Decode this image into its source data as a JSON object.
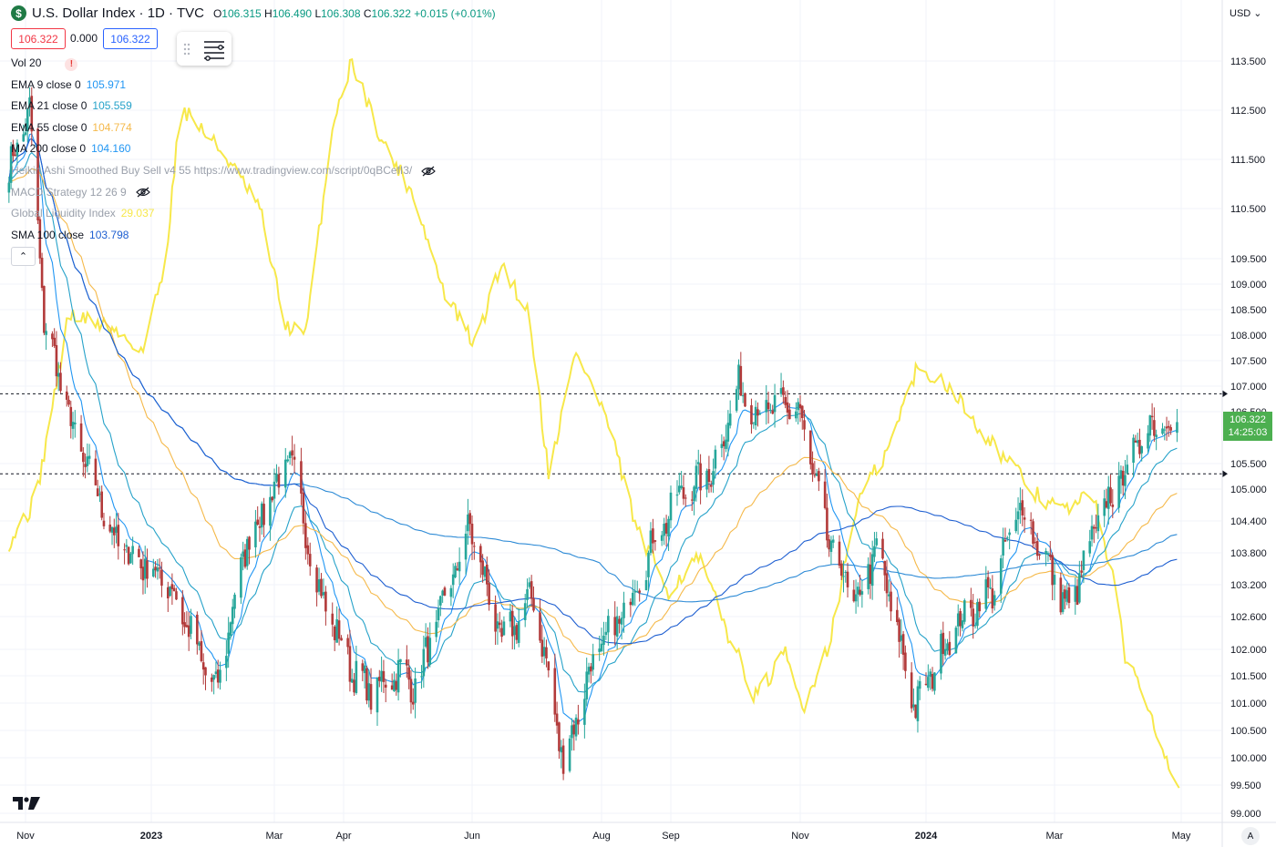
{
  "header": {
    "title": "U.S. Dollar Index · 1D · TVC",
    "ohlc": [
      {
        "k": "O",
        "v": "106.315"
      },
      {
        "k": "H",
        "v": "106.490"
      },
      {
        "k": "L",
        "v": "106.308"
      },
      {
        "k": "C",
        "v": "106.322"
      },
      {
        "k": "",
        "v": "+0.015 (+0.01%)"
      }
    ],
    "bid": "106.322",
    "spread": "0.000",
    "ask": "106.322"
  },
  "indicators": [
    {
      "label": "Vol 20",
      "value": "",
      "color": "#131722",
      "faded": false
    },
    {
      "label": "EMA 9 close 0",
      "value": "105.971",
      "color": "#2196f3",
      "faded": false
    },
    {
      "label": "EMA 21 close 0",
      "value": "105.559",
      "color": "#26a2c9",
      "faded": false
    },
    {
      "label": "EMA 55 close 0",
      "value": "104.774",
      "color": "#f5b94a",
      "faded": false
    },
    {
      "label": "MA 200 close 0",
      "value": "104.160",
      "color": "#2196f3",
      "faded": false
    },
    {
      "label": "Heikin Ashi Smoothed Buy Sell v4 55 https://www.tradingview.com/script/0qBCefI3/",
      "value": "",
      "color": "#9aa0ab",
      "faded": true
    },
    {
      "label": "MACD Strategy 12 26 9",
      "value": "",
      "color": "#9aa0ab",
      "faded": true
    },
    {
      "label": "Global Liquidity Index",
      "value": "29.037",
      "color": "#f7e84a",
      "faded": true
    },
    {
      "label": "SMA 100 close",
      "value": "103.798",
      "color": "#1e5fd1",
      "faded": false
    }
  ],
  "price_axis": {
    "currency": "USD",
    "last_price": "106.322",
    "countdown": "14:25:03"
  },
  "colors": {
    "up": "#26a69a",
    "down": "#b23a3a",
    "ema9": "#2196f3",
    "ema21": "#26a2c9",
    "ema55": "#f5b94a",
    "ma200": "#2e8bd6",
    "sma100": "#1e5fd1",
    "liquidity": "#f7e84a",
    "last": "#4caf50"
  },
  "chart_data": {
    "type": "candlestick",
    "symbol": "U.S. Dollar Index",
    "interval": "1D",
    "y_ticks": [
      "99.000",
      "99.500",
      "100.000",
      "100.500",
      "101.000",
      "101.500",
      "102.000",
      "102.600",
      "103.200",
      "103.800",
      "104.400",
      "105.000",
      "105.500",
      "106.500",
      "107.000",
      "107.500",
      "108.000",
      "108.500",
      "109.000",
      "109.500",
      "110.500",
      "111.500",
      "112.500",
      "113.500"
    ],
    "x_ticks": [
      "Nov",
      "2023",
      "Mar",
      "Apr",
      "Jun",
      "Aug",
      "Sep",
      "Nov",
      "2024",
      "Mar",
      "May"
    ],
    "dashed_levels": [
      106.85,
      105.3
    ],
    "price_anchors": [
      [
        "2022-10-24",
        111.3
      ],
      [
        "2022-11-03",
        112.5
      ],
      [
        "2022-11-10",
        108.3
      ],
      [
        "2022-11-25",
        106.0
      ],
      [
        "2022-12-15",
        104.0
      ],
      [
        "2023-01-10",
        103.2
      ],
      [
        "2023-01-27",
        101.6
      ],
      [
        "2023-02-01",
        101.2
      ],
      [
        "2023-02-15",
        103.9
      ],
      [
        "2023-03-08",
        105.6
      ],
      [
        "2023-03-21",
        103.1
      ],
      [
        "2023-04-05",
        101.6
      ],
      [
        "2023-04-14",
        101.2
      ],
      [
        "2023-04-27",
        101.6
      ],
      [
        "2023-05-05",
        101.3
      ],
      [
        "2023-05-31",
        104.3
      ],
      [
        "2023-06-15",
        102.1
      ],
      [
        "2023-06-30",
        103.0
      ],
      [
        "2023-07-14",
        99.9
      ],
      [
        "2023-07-27",
        101.7
      ],
      [
        "2023-08-10",
        102.6
      ],
      [
        "2023-08-25",
        104.1
      ],
      [
        "2023-09-07",
        105.0
      ],
      [
        "2023-09-20",
        105.3
      ],
      [
        "2023-10-03",
        107.0
      ],
      [
        "2023-10-12",
        106.5
      ],
      [
        "2023-10-31",
        106.6
      ],
      [
        "2023-11-14",
        104.1
      ],
      [
        "2023-11-28",
        102.8
      ],
      [
        "2023-12-08",
        103.9
      ],
      [
        "2023-12-27",
        100.9
      ],
      [
        "2024-01-12",
        102.3
      ],
      [
        "2024-02-01",
        103.1
      ],
      [
        "2024-02-14",
        104.7
      ],
      [
        "2024-03-08",
        102.7
      ],
      [
        "2024-03-22",
        104.4
      ],
      [
        "2024-04-16",
        106.3
      ],
      [
        "2024-04-29",
        106.3
      ]
    ],
    "series": [
      {
        "name": "EMA 9 close 0",
        "last": 105.971
      },
      {
        "name": "EMA 21 close 0",
        "last": 105.559
      },
      {
        "name": "EMA 55 close 0",
        "last": 104.774
      },
      {
        "name": "MA 200 close 0",
        "last": 104.16
      },
      {
        "name": "SMA 100 close",
        "last": 103.798
      },
      {
        "name": "Global Liquidity Index",
        "last": 29.037,
        "anchors": [
          [
            "2022-10-24",
            104.0
          ],
          [
            "2022-11-06",
            104.8
          ],
          [
            "2022-11-22",
            108.4
          ],
          [
            "2022-12-10",
            108.2
          ],
          [
            "2022-12-28",
            107.7
          ],
          [
            "2023-01-08",
            109.5
          ],
          [
            "2023-01-15",
            112.6
          ],
          [
            "2023-02-05",
            111.6
          ],
          [
            "2023-02-22",
            110.5
          ],
          [
            "2023-03-06",
            108.2
          ],
          [
            "2023-03-15",
            108.0
          ],
          [
            "2023-03-28",
            112.4
          ],
          [
            "2023-04-05",
            113.5
          ],
          [
            "2023-04-20",
            111.8
          ],
          [
            "2023-05-04",
            110.8
          ],
          [
            "2023-05-18",
            108.9
          ],
          [
            "2023-06-02",
            107.8
          ],
          [
            "2023-06-15",
            109.4
          ],
          [
            "2023-06-28",
            108.4
          ],
          [
            "2023-07-07",
            105.3
          ],
          [
            "2023-07-20",
            107.7
          ],
          [
            "2023-08-03",
            106.4
          ],
          [
            "2023-08-17",
            104.2
          ],
          [
            "2023-08-31",
            103.1
          ],
          [
            "2023-09-14",
            103.7
          ],
          [
            "2023-09-28",
            102.3
          ],
          [
            "2023-10-11",
            101.1
          ],
          [
            "2023-10-25",
            101.9
          ],
          [
            "2023-11-02",
            100.9
          ],
          [
            "2023-11-15",
            102.1
          ],
          [
            "2023-11-29",
            104.8
          ],
          [
            "2023-12-13",
            105.7
          ],
          [
            "2023-12-27",
            107.3
          ],
          [
            "2024-01-10",
            107.1
          ],
          [
            "2024-01-24",
            106.3
          ],
          [
            "2024-02-07",
            105.6
          ],
          [
            "2024-02-21",
            104.9
          ],
          [
            "2024-03-06",
            104.6
          ],
          [
            "2024-03-20",
            104.9
          ],
          [
            "2024-03-29",
            103.3
          ],
          [
            "2024-04-04",
            101.9
          ],
          [
            "2024-04-15",
            101.0
          ],
          [
            "2024-04-25",
            99.9
          ],
          [
            "2024-04-30",
            99.6
          ]
        ]
      }
    ]
  }
}
